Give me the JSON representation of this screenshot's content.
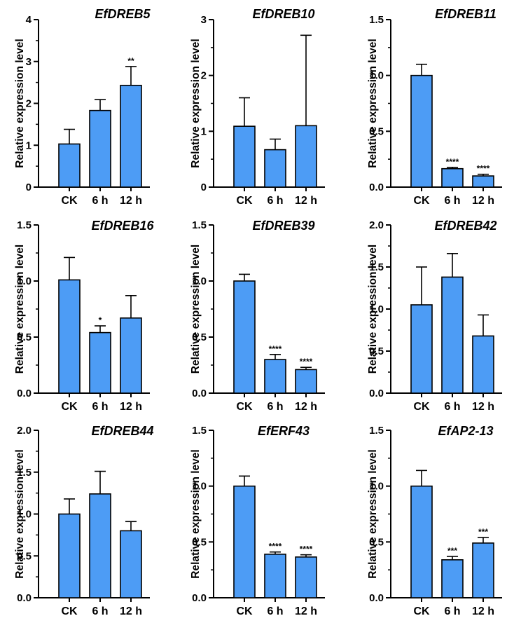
{
  "figure": {
    "ylabel": "Relative expression level"
  },
  "chart_data": [
    {
      "type": "bar",
      "title": "EfDREB5",
      "categories": [
        "CK",
        "6 h",
        "12 h"
      ],
      "values": [
        1.03,
        1.83,
        2.43
      ],
      "errors": [
        0.35,
        0.26,
        0.45
      ],
      "significance": [
        "",
        "",
        "**"
      ],
      "ylim": [
        0,
        4
      ],
      "yticks": [
        "0",
        "1",
        "2",
        "3",
        "4"
      ],
      "ylabel": "Relative expression level",
      "xlabel": ""
    },
    {
      "type": "bar",
      "title": "EfDREB10",
      "categories": [
        "CK",
        "6 h",
        "12 h"
      ],
      "values": [
        1.09,
        0.67,
        1.1
      ],
      "errors": [
        0.51,
        0.19,
        1.62
      ],
      "significance": [
        "",
        "",
        ""
      ],
      "ylim": [
        0,
        3
      ],
      "yticks": [
        "0",
        "1",
        "2",
        "3"
      ],
      "ylabel": "Relative expression level",
      "xlabel": ""
    },
    {
      "type": "bar",
      "title": "EfDREB11",
      "categories": [
        "CK",
        "6 h",
        "12 h"
      ],
      "values": [
        1.0,
        0.165,
        0.1
      ],
      "errors": [
        0.1,
        0.012,
        0.015
      ],
      "significance": [
        "",
        "****",
        "****"
      ],
      "ylim": [
        0,
        1.5
      ],
      "yticks": [
        "0.0",
        "0.5",
        "1.0",
        "1.5"
      ],
      "ylabel": "Relative expression level",
      "xlabel": ""
    },
    {
      "type": "bar",
      "title": "EfDREB16",
      "categories": [
        "CK",
        "6 h",
        "12 h"
      ],
      "values": [
        1.01,
        0.54,
        0.67
      ],
      "errors": [
        0.2,
        0.06,
        0.2
      ],
      "significance": [
        "",
        "*",
        ""
      ],
      "ylim": [
        0,
        1.5
      ],
      "yticks": [
        "0.0",
        "0.5",
        "1.0",
        "1.5"
      ],
      "ylabel": "Relative expression level",
      "xlabel": ""
    },
    {
      "type": "bar",
      "title": "EfDREB39",
      "categories": [
        "CK",
        "6 h",
        "12 h"
      ],
      "values": [
        1.0,
        0.3,
        0.21
      ],
      "errors": [
        0.06,
        0.045,
        0.02
      ],
      "significance": [
        "",
        "****",
        "****"
      ],
      "ylim": [
        0,
        1.5
      ],
      "yticks": [
        "0.0",
        "0.5",
        "1.0",
        "1.5"
      ],
      "ylabel": "Relative expression level",
      "xlabel": ""
    },
    {
      "type": "bar",
      "title": "EfDREB42",
      "categories": [
        "CK",
        "6 h",
        "12 h"
      ],
      "values": [
        1.05,
        1.38,
        0.68
      ],
      "errors": [
        0.45,
        0.28,
        0.25
      ],
      "significance": [
        "",
        "",
        ""
      ],
      "ylim": [
        0,
        2.0
      ],
      "yticks": [
        "0.0",
        "0.5",
        "1.0",
        "1.5",
        "2.0"
      ],
      "ylabel": "Relative expression level",
      "xlabel": ""
    },
    {
      "type": "bar",
      "title": "EfDREB44",
      "categories": [
        "CK",
        "6 h",
        "12 h"
      ],
      "values": [
        1.0,
        1.24,
        0.8
      ],
      "errors": [
        0.18,
        0.27,
        0.11
      ],
      "significance": [
        "",
        "",
        ""
      ],
      "ylim": [
        0,
        2.0
      ],
      "yticks": [
        "0.0",
        "0.5",
        "1.0",
        "1.5",
        "2.0"
      ],
      "ylabel": "Relative expression level",
      "xlabel": ""
    },
    {
      "type": "bar",
      "title": "EfERF43",
      "categories": [
        "CK",
        "6 h",
        "12 h"
      ],
      "values": [
        1.0,
        0.39,
        0.365
      ],
      "errors": [
        0.09,
        0.02,
        0.02
      ],
      "significance": [
        "",
        "****",
        "****"
      ],
      "ylim": [
        0,
        1.5
      ],
      "yticks": [
        "0.0",
        "0.5",
        "1.0",
        "1.5"
      ],
      "ylabel": "Relative expression level",
      "xlabel": ""
    },
    {
      "type": "bar",
      "title": "EfAP2-13",
      "categories": [
        "CK",
        "6 h",
        "12 h"
      ],
      "values": [
        1.0,
        0.34,
        0.49
      ],
      "errors": [
        0.14,
        0.03,
        0.05
      ],
      "significance": [
        "",
        "***",
        "***"
      ],
      "ylim": [
        0,
        1.5
      ],
      "yticks": [
        "0.0",
        "0.5",
        "1.0",
        "1.5"
      ],
      "ylabel": "Relative expression level",
      "xlabel": ""
    }
  ]
}
